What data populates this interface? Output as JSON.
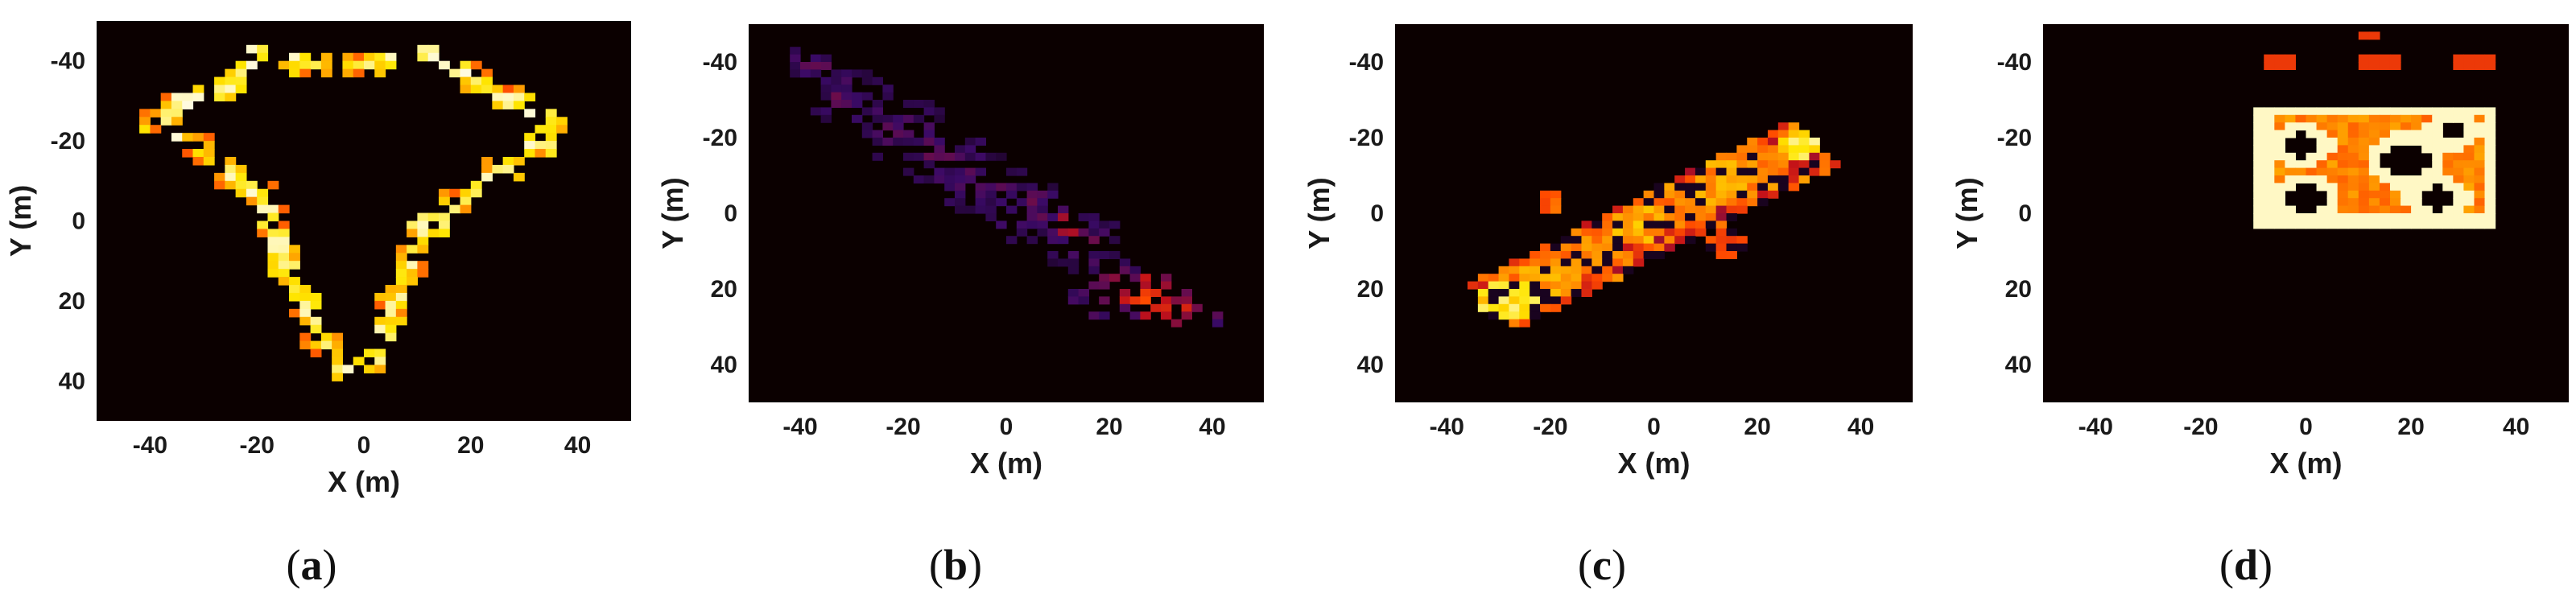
{
  "chart_data": [
    {
      "type": "heatmap",
      "panel_label": "(a)",
      "xlabel": "X (m)",
      "ylabel": "Y (m)",
      "xlim": [
        -50,
        50
      ],
      "ylim": [
        -50,
        50
      ],
      "y_inverted": true,
      "xticks": [
        -40,
        -20,
        0,
        20,
        40
      ],
      "yticks": [
        -40,
        -20,
        0,
        20,
        40
      ],
      "colormap": [
        "#0b0000",
        "#3a0a66",
        "#c0101a",
        "#ff4a00",
        "#ff9a00",
        "#ffe600",
        "#fffbe0"
      ],
      "background_color": "#0b0000",
      "blobs": [
        {
          "x": -38,
          "y": -25,
          "r": 4,
          "v": 0.85
        },
        {
          "x": -31,
          "y": -18,
          "r": 4,
          "v": 0.85
        },
        {
          "x": -25,
          "y": -12,
          "r": 4,
          "v": 0.9
        },
        {
          "x": -20,
          "y": -8,
          "r": 4,
          "v": 0.85
        },
        {
          "x": -17,
          "y": 0,
          "r": 4,
          "v": 0.9
        },
        {
          "x": -15,
          "y": 10,
          "r": 4,
          "v": 0.95
        },
        {
          "x": -12,
          "y": 20,
          "r": 4,
          "v": 0.9
        },
        {
          "x": -8,
          "y": 30,
          "r": 4,
          "v": 0.85
        },
        {
          "x": -4,
          "y": 37,
          "r": 3,
          "v": 0.9
        },
        {
          "x": 2,
          "y": 35,
          "r": 3,
          "v": 0.85
        },
        {
          "x": 5,
          "y": 22,
          "r": 4,
          "v": 0.85
        },
        {
          "x": 9,
          "y": 10,
          "r": 4,
          "v": 0.9
        },
        {
          "x": 12,
          "y": 2,
          "r": 4,
          "v": 0.95
        },
        {
          "x": 18,
          "y": -5,
          "r": 4,
          "v": 0.85
        },
        {
          "x": 26,
          "y": -13,
          "r": 4,
          "v": 0.9
        },
        {
          "x": 33,
          "y": -20,
          "r": 4,
          "v": 0.95
        },
        {
          "x": 36,
          "y": -25,
          "r": 3,
          "v": 0.9
        },
        {
          "x": 28,
          "y": -30,
          "r": 4,
          "v": 0.85
        },
        {
          "x": 20,
          "y": -36,
          "r": 4,
          "v": 0.9
        },
        {
          "x": 12,
          "y": -42,
          "r": 3,
          "v": 0.85
        },
        {
          "x": 0,
          "y": -39,
          "r": 4,
          "v": 0.8
        },
        {
          "x": -10,
          "y": -39,
          "r": 4,
          "v": 0.85
        },
        {
          "x": -20,
          "y": -42,
          "r": 3,
          "v": 0.9
        },
        {
          "x": -26,
          "y": -33,
          "r": 4,
          "v": 0.85
        },
        {
          "x": -35,
          "y": -30,
          "r": 3,
          "v": 0.85
        }
      ]
    },
    {
      "type": "heatmap",
      "panel_label": "(b)",
      "xlabel": "X (m)",
      "ylabel": "Y (m)",
      "xlim": [
        -50,
        50
      ],
      "ylim": [
        -50,
        50
      ],
      "y_inverted": true,
      "xticks": [
        -40,
        -20,
        0,
        20,
        40
      ],
      "yticks": [
        -40,
        -20,
        0,
        20,
        40
      ],
      "colormap": [
        "#0b0000",
        "#3a0a66",
        "#c0101a",
        "#ff4a00",
        "#ff9a00",
        "#ffe600",
        "#fffbe0"
      ],
      "background_color": "#0b0000",
      "blobs": [
        {
          "x": -38,
          "y": -40,
          "r": 5,
          "v": 0.25
        },
        {
          "x": -30,
          "y": -30,
          "r": 8,
          "v": 0.22
        },
        {
          "x": -20,
          "y": -22,
          "r": 9,
          "v": 0.2
        },
        {
          "x": -12,
          "y": -15,
          "r": 9,
          "v": 0.22
        },
        {
          "x": -5,
          "y": -8,
          "r": 9,
          "v": 0.22
        },
        {
          "x": 5,
          "y": 0,
          "r": 9,
          "v": 0.22
        },
        {
          "x": 12,
          "y": 3,
          "r": 3,
          "v": 0.5
        },
        {
          "x": 15,
          "y": 8,
          "r": 8,
          "v": 0.22
        },
        {
          "x": 20,
          "y": 20,
          "r": 8,
          "v": 0.28
        },
        {
          "x": 28,
          "y": 22,
          "r": 6,
          "v": 0.5
        },
        {
          "x": 33,
          "y": 25,
          "r": 5,
          "v": 0.42
        },
        {
          "x": 42,
          "y": 28,
          "r": 2,
          "v": 0.3
        }
      ]
    },
    {
      "type": "heatmap",
      "panel_label": "(c)",
      "xlabel": "X (m)",
      "ylabel": "Y (m)",
      "xlim": [
        -50,
        50
      ],
      "ylim": [
        -50,
        50
      ],
      "y_inverted": true,
      "xticks": [
        -40,
        -20,
        0,
        20,
        40
      ],
      "yticks": [
        -40,
        -20,
        0,
        20,
        40
      ],
      "colormap": [
        "#0b0000",
        "#3a0a66",
        "#c0101a",
        "#ff4a00",
        "#ff9a00",
        "#ffe600",
        "#fffbe0"
      ],
      "background_color": "#0b0000",
      "blobs": [
        {
          "x": -28,
          "y": 23,
          "r": 6,
          "v": 0.95
        },
        {
          "x": -20,
          "y": 17,
          "r": 6,
          "v": 0.75
        },
        {
          "x": -12,
          "y": 10,
          "r": 6,
          "v": 0.7
        },
        {
          "x": -3,
          "y": 3,
          "r": 5,
          "v": 0.8
        },
        {
          "x": 5,
          "y": -3,
          "r": 6,
          "v": 0.7
        },
        {
          "x": 13,
          "y": -8,
          "r": 6,
          "v": 0.75
        },
        {
          "x": 20,
          "y": -12,
          "r": 6,
          "v": 0.7
        },
        {
          "x": 28,
          "y": -18,
          "r": 4,
          "v": 0.95
        },
        {
          "x": -20,
          "y": -3,
          "r": 3,
          "v": 0.6
        },
        {
          "x": 14,
          "y": 8,
          "r": 4,
          "v": 0.55
        }
      ]
    },
    {
      "type": "heatmap",
      "panel_label": "(d)",
      "xlabel": "X (m)",
      "ylabel": "Y (m)",
      "xlim": [
        -50,
        50
      ],
      "ylim": [
        -50,
        50
      ],
      "y_inverted": true,
      "xticks": [
        -40,
        -20,
        0,
        20,
        40
      ],
      "yticks": [
        -40,
        -20,
        0,
        20,
        40
      ],
      "colormap": [
        "#0b0000",
        "#3a0a66",
        "#c0101a",
        "#ff4a00",
        "#ff9a00",
        "#ffe600",
        "#fffbe0"
      ],
      "background_color": "#0b0000",
      "rect_region": {
        "x0": -9,
        "x1": 36,
        "y0": -28,
        "y1": 3,
        "v": 0.62
      },
      "rect_border_value": 0.98,
      "rings": [
        {
          "x": -1,
          "y": -18,
          "r": 5,
          "v": 0.98
        },
        {
          "x": 19,
          "y": -14,
          "r": 6,
          "v": 0.98
        },
        {
          "x": 28,
          "y": -22,
          "r": 4,
          "v": 0.98
        },
        {
          "x": 0,
          "y": -4,
          "r": 5,
          "v": 0.98
        },
        {
          "x": 25,
          "y": -4,
          "r": 5,
          "v": 0.98
        }
      ],
      "top_fragments": [
        {
          "x0": -8,
          "x1": -2,
          "y0": -42,
          "y1": -39,
          "v": 0.45
        },
        {
          "x0": 11,
          "x1": 18,
          "y0": -42,
          "y1": -39,
          "v": 0.45
        },
        {
          "x0": 29,
          "x1": 35,
          "y0": -42,
          "y1": -39,
          "v": 0.45
        },
        {
          "x0": 10,
          "x1": 13,
          "y0": -48,
          "y1": -46,
          "v": 0.45
        }
      ]
    }
  ]
}
